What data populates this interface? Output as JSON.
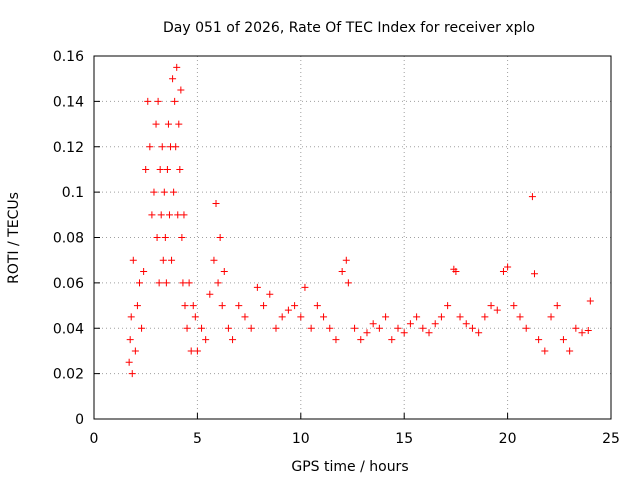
{
  "chart_data": {
    "type": "scatter",
    "title": "Day 051 of 2026, Rate Of TEC Index for receiver xplo",
    "xlabel": "GPS time / hours",
    "ylabel": "ROTI / TECUs",
    "xlim": [
      0,
      25
    ],
    "ylim": [
      0,
      0.16
    ],
    "xticks": [
      "0",
      "5",
      "10",
      "15",
      "20",
      "25"
    ],
    "yticks": [
      "0",
      "0.02",
      "0.04",
      "0.06",
      "0.08",
      "0.1",
      "0.12",
      "0.14",
      "0.16"
    ],
    "grid": true,
    "marker": "+",
    "color": "#ff0000",
    "series": [
      {
        "x": [
          1.7,
          1.75,
          1.8,
          1.85,
          1.9,
          2.0,
          2.1,
          2.2,
          2.3,
          2.4,
          2.5,
          2.6,
          2.7,
          2.8,
          2.9,
          3.0,
          3.05,
          3.1,
          3.15,
          3.2,
          3.25,
          3.3,
          3.35,
          3.4,
          3.45,
          3.5,
          3.55,
          3.6,
          3.65,
          3.7,
          3.75,
          3.8,
          3.85,
          3.9,
          3.95,
          4.0,
          4.05,
          4.1,
          4.15,
          4.2,
          4.25,
          4.3,
          4.35,
          4.4,
          4.5,
          4.6,
          4.7,
          4.8,
          4.9,
          5.0,
          5.2,
          5.4,
          5.6,
          5.8,
          5.9,
          6.0,
          6.1,
          6.2,
          6.3,
          6.5,
          6.7,
          7.0,
          7.3,
          7.6,
          7.9,
          8.2,
          8.5,
          8.8,
          9.1,
          9.4,
          9.7,
          10.0,
          10.2,
          10.5,
          10.8,
          11.1,
          11.4,
          11.7,
          12.0,
          12.2,
          12.3,
          12.6,
          12.9,
          13.2,
          13.5,
          13.8,
          14.1,
          14.4,
          14.7,
          15.0,
          15.3,
          15.6,
          15.9,
          16.2,
          16.5,
          16.8,
          17.1,
          17.4,
          17.5,
          17.7,
          18.0,
          18.3,
          18.6,
          18.9,
          19.2,
          19.5,
          19.8,
          20.0,
          20.3,
          20.6,
          20.9,
          21.2,
          21.3,
          21.5,
          21.8,
          22.1,
          22.4,
          22.7,
          23.0,
          23.3,
          23.6,
          23.9,
          24.0
        ],
        "y": [
          0.025,
          0.035,
          0.045,
          0.02,
          0.07,
          0.03,
          0.05,
          0.06,
          0.04,
          0.065,
          0.11,
          0.14,
          0.12,
          0.09,
          0.1,
          0.13,
          0.08,
          0.14,
          0.06,
          0.11,
          0.09,
          0.12,
          0.07,
          0.1,
          0.08,
          0.06,
          0.11,
          0.13,
          0.09,
          0.12,
          0.07,
          0.15,
          0.1,
          0.14,
          0.12,
          0.155,
          0.09,
          0.13,
          0.11,
          0.145,
          0.08,
          0.06,
          0.09,
          0.05,
          0.04,
          0.06,
          0.03,
          0.05,
          0.045,
          0.03,
          0.04,
          0.035,
          0.055,
          0.07,
          0.095,
          0.06,
          0.08,
          0.05,
          0.065,
          0.04,
          0.035,
          0.05,
          0.045,
          0.04,
          0.058,
          0.05,
          0.055,
          0.04,
          0.045,
          0.048,
          0.05,
          0.045,
          0.058,
          0.04,
          0.05,
          0.045,
          0.04,
          0.035,
          0.065,
          0.07,
          0.06,
          0.04,
          0.035,
          0.038,
          0.042,
          0.04,
          0.045,
          0.035,
          0.04,
          0.038,
          0.042,
          0.045,
          0.04,
          0.038,
          0.042,
          0.045,
          0.05,
          0.066,
          0.065,
          0.045,
          0.042,
          0.04,
          0.038,
          0.045,
          0.05,
          0.048,
          0.065,
          0.067,
          0.05,
          0.045,
          0.04,
          0.098,
          0.064,
          0.035,
          0.03,
          0.045,
          0.05,
          0.035,
          0.03,
          0.04,
          0.038,
          0.039,
          0.052
        ]
      }
    ]
  }
}
